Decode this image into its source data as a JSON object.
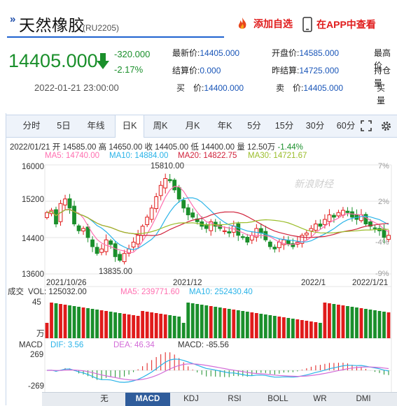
{
  "header": {
    "mark": "»",
    "title": "天然橡胶",
    "code": "(RU2205)",
    "follow_label": "添加自选",
    "app_label": "在APP中查看"
  },
  "quote": {
    "price": "14405.000",
    "change": "-320.000",
    "change_pct": "-2.17%",
    "time": "2022-01-21 23:00:00",
    "fields": [
      {
        "label": "最新价:",
        "value": "14405.000"
      },
      {
        "label": "开盘价:",
        "value": "14585.000"
      },
      {
        "label": "最高价",
        "value": ""
      },
      {
        "label": "结算价:",
        "value": "0.000"
      },
      {
        "label": "昨结算:",
        "value": "14725.000"
      },
      {
        "label": "持仓量",
        "value": ""
      },
      {
        "label": "买　价:",
        "value": "14400.000"
      },
      {
        "label": "卖　价:",
        "value": "14405.000"
      },
      {
        "label": "买　量",
        "value": ""
      }
    ]
  },
  "tabs": [
    {
      "label": "分时",
      "active": false
    },
    {
      "label": "5日",
      "active": false
    },
    {
      "label": "年线",
      "active": false
    },
    {
      "label": "日K",
      "active": true
    },
    {
      "label": "周K",
      "active": false
    },
    {
      "label": "月K",
      "active": false
    },
    {
      "label": "年K",
      "active": false
    },
    {
      "label": "5分",
      "active": false
    },
    {
      "label": "15分",
      "active": false
    },
    {
      "label": "30分",
      "active": false
    },
    {
      "label": "60分",
      "active": false
    }
  ],
  "ohlc": {
    "date": "2022/01/21",
    "open_label": "开",
    "open": "14585.00",
    "high_label": "高",
    "high": "14650.00",
    "close_label": "收",
    "close": "14405.00",
    "low_label": "低",
    "low": "14400.00",
    "vol_label": "量",
    "vol": "12.50万",
    "pct": "-1.44%"
  },
  "ma": {
    "ma5": "MA5: 14740.00",
    "ma10": "MA10: 14884.00",
    "ma20": "MA20: 14822.75",
    "ma30": "MA30: 14721.67"
  },
  "volume_header": {
    "label": "成交",
    "vol": "VOL: 125032.00",
    "ma5": "MA5: 239771.60",
    "ma10": "MA10: 252430.40"
  },
  "macd_header": {
    "label": "MACD",
    "dif": "DIF: 3.56",
    "dea": "DEA: 46.34",
    "macd": "MACD: -85.56"
  },
  "watermark": "新浪财经",
  "bottom_tabs": [
    {
      "label": "无",
      "active": false
    },
    {
      "label": "MACD",
      "active": true
    },
    {
      "label": "KDJ",
      "active": false
    },
    {
      "label": "RSI",
      "active": false
    },
    {
      "label": "BOLL",
      "active": false
    },
    {
      "label": "WR",
      "active": false
    },
    {
      "label": "DMI",
      "active": false
    }
  ],
  "colors": {
    "up": "#e01b1b",
    "down": "#1a8f2b",
    "ma5": "#ff6fb0",
    "ma10": "#29b3e8",
    "ma20": "#d0213a",
    "ma30": "#9bbd2a",
    "dea": "#d36cd8"
  },
  "chart_data": {
    "type": "candlestick",
    "y_ticks": [
      "16000",
      "15200",
      "14400",
      "13600"
    ],
    "pct_ticks": [
      "7%",
      "2%",
      "-4%",
      "-9%"
    ],
    "x_ticks": [
      "2021/10/26",
      "2021/12",
      "2022/1",
      "2022/1/21"
    ],
    "max_label": "15810.00",
    "min_label": "13835.00",
    "vol_ticks": [
      "45",
      "万"
    ],
    "macd_ticks": [
      "269",
      "-269"
    ],
    "ylim": [
      13500,
      16150
    ]
  }
}
